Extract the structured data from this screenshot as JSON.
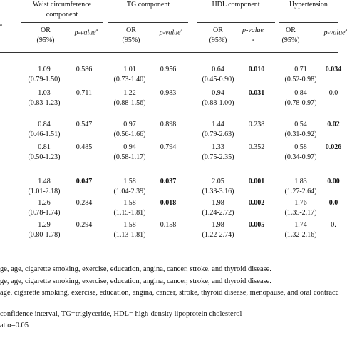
{
  "header": {
    "stub_mark": "a",
    "groups": [
      "Waist circumference component",
      "TG component",
      "HDL component",
      "Hypertension"
    ],
    "or_label": "OR",
    "ci_label": "(95%)",
    "p_label": "p-value",
    "note_mark": "a"
  },
  "rows": [
    [
      {
        "or": "1.09",
        "ci": "(0.79-1.50)",
        "p": "0.586",
        "sig": false
      },
      {
        "or": "1.01",
        "ci": "(0.73-1.40)",
        "p": "0.956",
        "sig": false
      },
      {
        "or": "0.64",
        "ci": "(0.45-0.90)",
        "p": "0.010",
        "sig": true
      },
      {
        "or": "0.71",
        "ci": "(0.52-0.98)",
        "p": "0.034",
        "sig": true
      }
    ],
    [
      {
        "or": "1.03",
        "ci": "(0.83-1.23)",
        "p": "0.711",
        "sig": false
      },
      {
        "or": "1.22",
        "ci": "(0.88-1.56)",
        "p": "0.983",
        "sig": false
      },
      {
        "or": "0.94",
        "ci": "(0.88-1.00)",
        "p": "0.031",
        "sig": true
      },
      {
        "or": "0.84",
        "ci": "(0.78-0.97)",
        "p": "0.0",
        "sig": false
      }
    ],
    [
      {
        "or": "0.84",
        "ci": "(0.46-1.51)",
        "p": "0.547",
        "sig": false
      },
      {
        "or": "0.97",
        "ci": "(0.56-1.66)",
        "p": "0.898",
        "sig": false
      },
      {
        "or": "1.44",
        "ci": "(0.79-2.63)",
        "p": "0.238",
        "sig": false
      },
      {
        "or": "0.54",
        "ci": "(0.31-0.92)",
        "p": "0.02",
        "sig": true
      }
    ],
    [
      {
        "or": "0.81",
        "ci": "(0.50-1.23)",
        "p": "0.485",
        "sig": false
      },
      {
        "or": "0.94",
        "ci": "(0.58-1.17)",
        "p": "0.794",
        "sig": false
      },
      {
        "or": "1.33",
        "ci": "(0.75-2.35)",
        "p": "0.352",
        "sig": false
      },
      {
        "or": "0.58",
        "ci": "(0.34-0.97)",
        "p": "0.026",
        "sig": true
      }
    ],
    [
      {
        "or": "1.48",
        "ci": "(1.01-2.18)",
        "p": "0.047",
        "sig": true
      },
      {
        "or": "1.58",
        "ci": "(1.04-2.39)",
        "p": "0.037",
        "sig": true
      },
      {
        "or": "2.05",
        "ci": "(1.33-3.16)",
        "p": "0.001",
        "sig": true
      },
      {
        "or": "1.83",
        "ci": "(1.27-2.64)",
        "p": "0.00",
        "sig": true
      }
    ],
    [
      {
        "or": "1.26",
        "ci": "(0.78-1.74)",
        "p": "0.284",
        "sig": false
      },
      {
        "or": "1.58",
        "ci": "(1.15-1.81)",
        "p": "0.018",
        "sig": true
      },
      {
        "or": "1.98",
        "ci": "(1.24-2.72)",
        "p": "0.002",
        "sig": true
      },
      {
        "or": "1.76",
        "ci": "(1.35-2.17)",
        "p": "0.0",
        "sig": true
      }
    ],
    [
      {
        "or": "1.29",
        "ci": "(0.80-1.78)",
        "p": "0.294",
        "sig": false
      },
      {
        "or": "1.58",
        "ci": "(1.13-1.81)",
        "p": "0.158",
        "sig": false
      },
      {
        "or": "1.98",
        "ci": "(1.22-2.74)",
        "p": "0.005",
        "sig": true
      },
      {
        "or": "1.74",
        "ci": "(1.32-2.16)",
        "p": "0.",
        "sig": false
      }
    ]
  ],
  "footnotes": [
    "ge, age, cigarette smoking, exercise, education, angina, cancer, stroke, and thyroid disease.",
    "ge, age, cigarette smoking, exercise, education, angina, cancer, stroke, and thyroid disease.",
    "age, cigarette smoking, exercise, education, angina, cancer, stroke, thyroid disease, menopause, and oral contracc",
    "confidence interval, TG=triglyceride, HDL= high-density lipoprotein cholesterol",
    "at α=0.05"
  ]
}
